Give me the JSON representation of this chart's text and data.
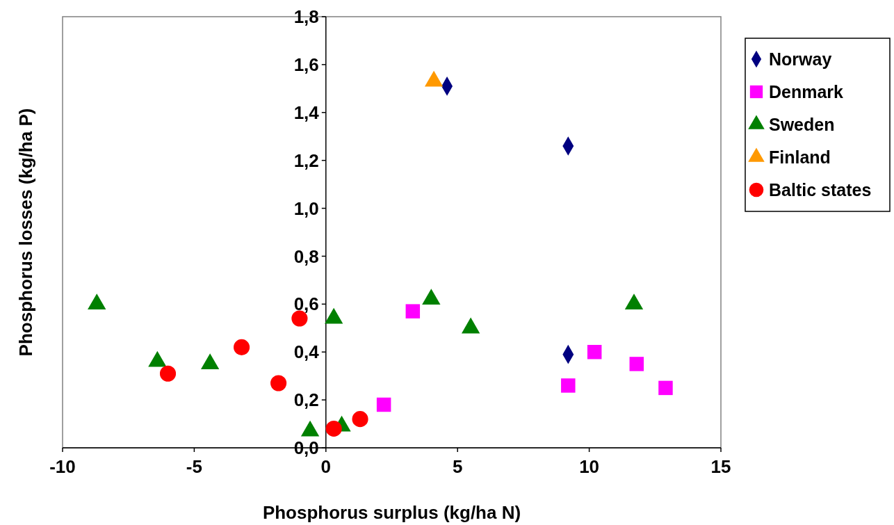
{
  "chart_data": {
    "type": "scatter",
    "xlabel": "Phosphorus surplus (kg/ha N)",
    "ylabel": "Phosphorus losses (kg/ha P)",
    "xlim": [
      -10,
      15
    ],
    "xticks": [
      -10,
      -5,
      0,
      5,
      10,
      15
    ],
    "ylim": [
      0,
      1.8
    ],
    "yticks": [
      {
        "value": 0,
        "label": "0,0"
      },
      {
        "value": 0.2,
        "label": "0,2"
      },
      {
        "value": 0.4,
        "label": "0,4"
      },
      {
        "value": 0.6,
        "label": "0,6"
      },
      {
        "value": 0.8,
        "label": "0,8"
      },
      {
        "value": 1,
        "label": "1,0"
      },
      {
        "value": 1.2,
        "label": "1,2"
      },
      {
        "value": 1.4,
        "label": "1,4"
      },
      {
        "value": 1.6,
        "label": "1,6"
      },
      {
        "value": 1.8,
        "label": "1,8"
      }
    ],
    "legend": "right",
    "series": [
      {
        "name": "Norway",
        "color": "#000080",
        "marker": "diamond",
        "x": [
          4.6,
          9.2,
          9.2
        ],
        "values": [
          1.51,
          1.26,
          0.39
        ]
      },
      {
        "name": "Denmark",
        "color": "#ff00ff",
        "marker": "square",
        "x": [
          3.3,
          2.2,
          9.2,
          10.2,
          11.8,
          12.9
        ],
        "values": [
          0.57,
          0.18,
          0.26,
          0.4,
          0.35,
          0.25
        ]
      },
      {
        "name": "Sweden",
        "color": "#008000",
        "marker": "triangle",
        "x": [
          -8.7,
          -6.4,
          -4.4,
          -0.6,
          0.6,
          0.3,
          4.0,
          5.5,
          11.7
        ],
        "values": [
          0.6,
          0.36,
          0.35,
          0.07,
          0.09,
          0.54,
          0.62,
          0.5,
          0.6
        ]
      },
      {
        "name": "Finland",
        "color": "#ff9900",
        "marker": "triangle",
        "x": [
          4.1
        ],
        "values": [
          1.53
        ]
      },
      {
        "name": "Baltic states",
        "color": "#ff0000",
        "marker": "circle",
        "x": [
          -6.0,
          -3.2,
          -1.8,
          -1.0,
          0.3,
          1.3
        ],
        "values": [
          0.31,
          0.42,
          0.27,
          0.54,
          0.08,
          0.12
        ]
      }
    ]
  }
}
